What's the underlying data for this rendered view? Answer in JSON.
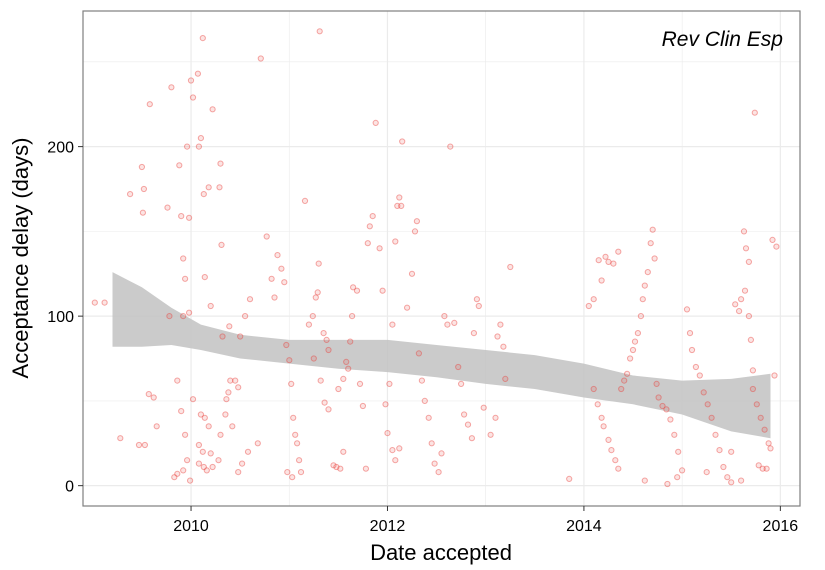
{
  "chart_data": {
    "type": "scatter",
    "annotation": "Rev Clin Esp",
    "xlabel": "Date accepted",
    "ylabel": "Acceptance delay (days)",
    "xlim": [
      2008.9,
      2016.2
    ],
    "ylim": [
      -12,
      280
    ],
    "x_ticks": [
      2010,
      2012,
      2014,
      2016
    ],
    "y_ticks": [
      0,
      100,
      200
    ],
    "grid": true,
    "colors": {
      "points": "#e8413c",
      "band": "#c2c2c2",
      "grid": "#ebebeb",
      "frame": "#7f7f7f"
    },
    "points": [
      [
        2009.02,
        108
      ],
      [
        2009.12,
        108
      ],
      [
        2009.28,
        28
      ],
      [
        2009.38,
        172
      ],
      [
        2009.47,
        24
      ],
      [
        2009.53,
        24
      ],
      [
        2009.5,
        188
      ],
      [
        2009.52,
        175
      ],
      [
        2009.51,
        161
      ],
      [
        2009.58,
        225
      ],
      [
        2009.57,
        54
      ],
      [
        2009.62,
        52
      ],
      [
        2009.65,
        35
      ],
      [
        2009.78,
        100
      ],
      [
        2009.92,
        100
      ],
      [
        2009.98,
        102
      ],
      [
        2009.86,
        62
      ],
      [
        2009.9,
        44
      ],
      [
        2009.94,
        30
      ],
      [
        2009.96,
        15
      ],
      [
        2009.92,
        9
      ],
      [
        2009.99,
        3
      ],
      [
        2009.83,
        5
      ],
      [
        2009.86,
        7
      ],
      [
        2009.76,
        164
      ],
      [
        2009.8,
        235
      ],
      [
        2009.88,
        189
      ],
      [
        2009.9,
        159
      ],
      [
        2009.92,
        134
      ],
      [
        2009.94,
        122
      ],
      [
        2009.98,
        158
      ],
      [
        2009.96,
        200
      ],
      [
        2010.0,
        239
      ],
      [
        2010.02,
        229
      ],
      [
        2010.07,
        243
      ],
      [
        2010.1,
        205
      ],
      [
        2010.08,
        200
      ],
      [
        2010.12,
        264
      ],
      [
        2010.13,
        172
      ],
      [
        2010.18,
        176
      ],
      [
        2010.22,
        222
      ],
      [
        2010.29,
        176
      ],
      [
        2010.3,
        190
      ],
      [
        2010.31,
        142
      ],
      [
        2010.14,
        123
      ],
      [
        2010.2,
        106
      ],
      [
        2010.02,
        51
      ],
      [
        2010.1,
        42
      ],
      [
        2010.14,
        40
      ],
      [
        2010.18,
        35
      ],
      [
        2010.08,
        24
      ],
      [
        2010.12,
        20
      ],
      [
        2010.2,
        19
      ],
      [
        2010.08,
        13
      ],
      [
        2010.13,
        11
      ],
      [
        2010.16,
        9
      ],
      [
        2010.22,
        11
      ],
      [
        2010.28,
        15
      ],
      [
        2010.3,
        30
      ],
      [
        2010.35,
        42
      ],
      [
        2010.36,
        51
      ],
      [
        2010.38,
        55
      ],
      [
        2010.4,
        62
      ],
      [
        2010.45,
        62
      ],
      [
        2010.32,
        88
      ],
      [
        2010.39,
        94
      ],
      [
        2010.5,
        88
      ],
      [
        2010.55,
        100
      ],
      [
        2010.6,
        110
      ],
      [
        2010.48,
        58
      ],
      [
        2010.42,
        35
      ],
      [
        2010.52,
        13
      ],
      [
        2010.48,
        8
      ],
      [
        2010.58,
        20
      ],
      [
        2010.68,
        25
      ],
      [
        2010.71,
        252
      ],
      [
        2010.77,
        147
      ],
      [
        2010.82,
        122
      ],
      [
        2010.85,
        111
      ],
      [
        2010.88,
        136
      ],
      [
        2010.92,
        128
      ],
      [
        2010.95,
        120
      ],
      [
        2010.97,
        83
      ],
      [
        2011.0,
        74
      ],
      [
        2011.02,
        60
      ],
      [
        2011.04,
        40
      ],
      [
        2011.06,
        30
      ],
      [
        2011.08,
        25
      ],
      [
        2011.1,
        15
      ],
      [
        2011.12,
        8
      ],
      [
        2011.03,
        5
      ],
      [
        2010.98,
        8
      ],
      [
        2011.16,
        168
      ],
      [
        2011.2,
        95
      ],
      [
        2011.24,
        100
      ],
      [
        2011.27,
        111
      ],
      [
        2011.29,
        114
      ],
      [
        2011.3,
        131
      ],
      [
        2011.31,
        268
      ],
      [
        2011.35,
        90
      ],
      [
        2011.38,
        86
      ],
      [
        2011.4,
        80
      ],
      [
        2011.25,
        75
      ],
      [
        2011.32,
        62
      ],
      [
        2011.36,
        49
      ],
      [
        2011.4,
        45
      ],
      [
        2011.45,
        12
      ],
      [
        2011.48,
        11
      ],
      [
        2011.52,
        10
      ],
      [
        2011.55,
        20
      ],
      [
        2011.5,
        57
      ],
      [
        2011.55,
        63
      ],
      [
        2011.58,
        73
      ],
      [
        2011.6,
        69
      ],
      [
        2011.62,
        85
      ],
      [
        2011.64,
        100
      ],
      [
        2011.65,
        117
      ],
      [
        2011.69,
        115
      ],
      [
        2011.72,
        60
      ],
      [
        2011.75,
        47
      ],
      [
        2011.78,
        10
      ],
      [
        2011.8,
        143
      ],
      [
        2011.82,
        153
      ],
      [
        2011.85,
        159
      ],
      [
        2011.88,
        214
      ],
      [
        2011.92,
        140
      ],
      [
        2011.95,
        115
      ],
      [
        2011.98,
        48
      ],
      [
        2012.0,
        31
      ],
      [
        2012.05,
        21
      ],
      [
        2012.08,
        15
      ],
      [
        2012.12,
        22
      ],
      [
        2012.02,
        60
      ],
      [
        2012.05,
        95
      ],
      [
        2012.08,
        144
      ],
      [
        2012.1,
        165
      ],
      [
        2012.12,
        170
      ],
      [
        2012.14,
        165
      ],
      [
        2012.15,
        203
      ],
      [
        2012.2,
        105
      ],
      [
        2012.25,
        125
      ],
      [
        2012.28,
        150
      ],
      [
        2012.3,
        156
      ],
      [
        2012.32,
        78
      ],
      [
        2012.35,
        62
      ],
      [
        2012.38,
        50
      ],
      [
        2012.42,
        40
      ],
      [
        2012.45,
        25
      ],
      [
        2012.48,
        13
      ],
      [
        2012.52,
        8
      ],
      [
        2012.55,
        19
      ],
      [
        2012.58,
        100
      ],
      [
        2012.61,
        95
      ],
      [
        2012.64,
        200
      ],
      [
        2012.68,
        96
      ],
      [
        2012.72,
        70
      ],
      [
        2012.75,
        60
      ],
      [
        2012.78,
        42
      ],
      [
        2012.82,
        36
      ],
      [
        2012.86,
        28
      ],
      [
        2012.88,
        90
      ],
      [
        2012.91,
        110
      ],
      [
        2012.93,
        106
      ],
      [
        2012.98,
        46
      ],
      [
        2013.05,
        30
      ],
      [
        2013.1,
        40
      ],
      [
        2013.12,
        88
      ],
      [
        2013.15,
        95
      ],
      [
        2013.18,
        82
      ],
      [
        2013.2,
        63
      ],
      [
        2013.25,
        129
      ],
      [
        2013.85,
        4
      ],
      [
        2014.05,
        106
      ],
      [
        2014.1,
        110
      ],
      [
        2014.15,
        133
      ],
      [
        2014.18,
        121
      ],
      [
        2014.22,
        135
      ],
      [
        2014.25,
        132
      ],
      [
        2014.3,
        131
      ],
      [
        2014.35,
        138
      ],
      [
        2014.1,
        57
      ],
      [
        2014.14,
        48
      ],
      [
        2014.18,
        40
      ],
      [
        2014.2,
        35
      ],
      [
        2014.25,
        27
      ],
      [
        2014.28,
        21
      ],
      [
        2014.32,
        15
      ],
      [
        2014.35,
        10
      ],
      [
        2014.38,
        57
      ],
      [
        2014.41,
        62
      ],
      [
        2014.44,
        66
      ],
      [
        2014.47,
        75
      ],
      [
        2014.5,
        80
      ],
      [
        2014.52,
        85
      ],
      [
        2014.55,
        90
      ],
      [
        2014.58,
        100
      ],
      [
        2014.6,
        110
      ],
      [
        2014.62,
        118
      ],
      [
        2014.65,
        126
      ],
      [
        2014.68,
        143
      ],
      [
        2014.7,
        151
      ],
      [
        2014.72,
        134
      ],
      [
        2014.74,
        60
      ],
      [
        2014.76,
        52
      ],
      [
        2014.8,
        47
      ],
      [
        2014.84,
        45
      ],
      [
        2014.88,
        39
      ],
      [
        2014.92,
        30
      ],
      [
        2014.96,
        20
      ],
      [
        2015.0,
        9
      ],
      [
        2015.05,
        104
      ],
      [
        2015.08,
        90
      ],
      [
        2015.1,
        80
      ],
      [
        2015.14,
        70
      ],
      [
        2015.18,
        65
      ],
      [
        2015.22,
        55
      ],
      [
        2015.26,
        48
      ],
      [
        2015.3,
        40
      ],
      [
        2015.34,
        30
      ],
      [
        2015.38,
        21
      ],
      [
        2015.42,
        11
      ],
      [
        2015.46,
        5
      ],
      [
        2015.5,
        2
      ],
      [
        2015.54,
        107
      ],
      [
        2015.58,
        103
      ],
      [
        2015.6,
        110
      ],
      [
        2015.64,
        115
      ],
      [
        2015.68,
        100
      ],
      [
        2015.72,
        57
      ],
      [
        2015.76,
        48
      ],
      [
        2015.8,
        40
      ],
      [
        2015.84,
        33
      ],
      [
        2015.88,
        25
      ],
      [
        2015.92,
        145
      ],
      [
        2015.96,
        141
      ],
      [
        2015.63,
        150
      ],
      [
        2015.65,
        140
      ],
      [
        2015.68,
        132
      ],
      [
        2015.7,
        86
      ],
      [
        2015.72,
        68
      ],
      [
        2015.74,
        220
      ],
      [
        2015.78,
        12
      ],
      [
        2015.82,
        10
      ],
      [
        2015.86,
        10
      ],
      [
        2015.9,
        22
      ],
      [
        2015.94,
        65
      ],
      [
        2015.6,
        3
      ],
      [
        2015.5,
        20
      ],
      [
        2014.95,
        5
      ],
      [
        2014.85,
        1
      ],
      [
        2015.25,
        8
      ],
      [
        2014.62,
        3
      ]
    ],
    "smooth_band": {
      "x": [
        2009.2,
        2009.5,
        2009.8,
        2010.1,
        2010.5,
        2011.0,
        2011.5,
        2012.0,
        2012.5,
        2013.0,
        2013.5,
        2014.0,
        2014.5,
        2015.0,
        2015.5,
        2015.9
      ],
      "upper": [
        126,
        117,
        105,
        95,
        89,
        86,
        86,
        86,
        83,
        80,
        77,
        72,
        65,
        62,
        63,
        66
      ],
      "lower": [
        82,
        82,
        83,
        80,
        75,
        72,
        69,
        67,
        64,
        60,
        57,
        52,
        48,
        42,
        32,
        28
      ]
    }
  }
}
